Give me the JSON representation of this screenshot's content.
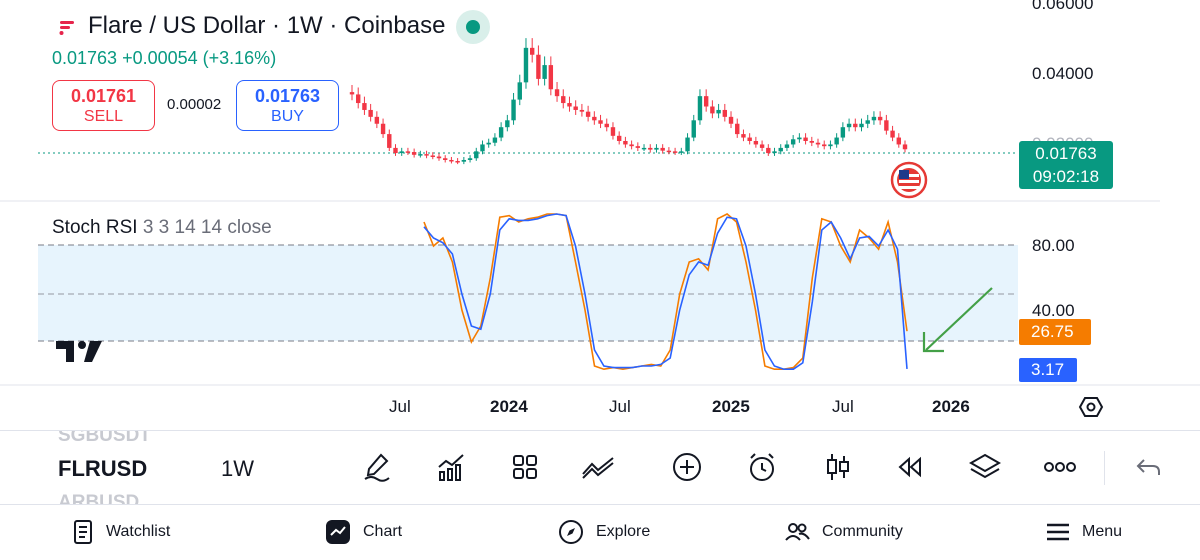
{
  "header": {
    "title": "Flare / US Dollar · 1W · Coinbase",
    "change": "0.01763  +0.00054 (+3.16%)",
    "sell": {
      "price": "0.01761",
      "label": "SELL"
    },
    "buy": {
      "price": "0.01763",
      "label": "BUY"
    },
    "spread": "0.00002",
    "status_icon": "market-open-dot"
  },
  "price_axis": {
    "top_label": "0.06000",
    "mid_label": "0.04000",
    "hidden_label": "0.02000"
  },
  "price_tag": {
    "price": "0.01763",
    "countdown": "09:02:18",
    "color": "#089981"
  },
  "indicator": {
    "name": "Stoch RSI",
    "params": "3 3 14 14 close",
    "level_80": "80.00",
    "level_40": "40.00",
    "k_value": "26.75",
    "d_value": "3.17",
    "k_color": "#f57c00",
    "d_color": "#2962ff"
  },
  "time_axis": [
    "Jul",
    "2024",
    "Jul",
    "2025",
    "Jul",
    "2026"
  ],
  "toolbar": {
    "ghost_above": "SGBUSDT",
    "symbol": "FLRUSD",
    "ghost_below": "ARBUSD",
    "interval": "1W",
    "icons": [
      "draw-icon",
      "indicators-icon",
      "layouts-icon",
      "compare-icon",
      "add-icon",
      "alert-icon",
      "candle-type-icon",
      "replay-icon",
      "layers-icon",
      "more-icon",
      "undo-icon"
    ]
  },
  "nav": {
    "watchlist": "Watchlist",
    "chart": "Chart",
    "explore": "Explore",
    "community": "Community",
    "menu": "Menu"
  },
  "chart_data": {
    "type": "candlestick",
    "series_note": "",
    "price_close_weekly": [
      0.0335,
      0.031,
      0.029,
      0.027,
      0.025,
      0.022,
      0.018,
      0.0165,
      0.017,
      0.0168,
      0.016,
      0.0162,
      0.0158,
      0.0155,
      0.015,
      0.0145,
      0.0142,
      0.014,
      0.0145,
      0.015,
      0.017,
      0.019,
      0.0195,
      0.021,
      0.024,
      0.026,
      0.032,
      0.037,
      0.047,
      0.045,
      0.038,
      0.042,
      0.035,
      0.033,
      0.031,
      0.03,
      0.029,
      0.0285,
      0.027,
      0.026,
      0.025,
      0.024,
      0.0215,
      0.02,
      0.019,
      0.0185,
      0.018,
      0.018,
      0.0175,
      0.018,
      0.0172,
      0.017,
      0.0168,
      0.017,
      0.021,
      0.026,
      0.033,
      0.03,
      0.028,
      0.029,
      0.027,
      0.025,
      0.022,
      0.021,
      0.02,
      0.019,
      0.018,
      0.0165,
      0.017,
      0.018,
      0.019,
      0.0205,
      0.021,
      0.02,
      0.0195,
      0.019,
      0.0185,
      0.019,
      0.021,
      0.024,
      0.025,
      0.024,
      0.025,
      0.026,
      0.027,
      0.026,
      0.023,
      0.021,
      0.019,
      0.0176
    ],
    "stoch_k": [
      95,
      80,
      85,
      70,
      40,
      20,
      30,
      60,
      98,
      99,
      95,
      97,
      98,
      100,
      100,
      99,
      70,
      40,
      5,
      3,
      4,
      3,
      4,
      5,
      6,
      5,
      15,
      50,
      70,
      72,
      65,
      97,
      100,
      95,
      70,
      40,
      5,
      3,
      3,
      4,
      10,
      60,
      97,
      95,
      80,
      70,
      90,
      85,
      78,
      95,
      70,
      26.75
    ],
    "stoch_d": [
      92,
      85,
      82,
      75,
      50,
      30,
      28,
      50,
      90,
      97,
      96,
      96,
      97,
      99,
      100,
      99,
      80,
      50,
      15,
      5,
      4,
      4,
      4,
      5,
      5,
      6,
      10,
      40,
      62,
      70,
      68,
      88,
      98,
      97,
      80,
      50,
      15,
      5,
      3,
      3,
      7,
      45,
      90,
      95,
      85,
      72,
      85,
      86,
      80,
      90,
      78,
      3.17
    ],
    "levels": [
      80,
      40
    ],
    "last_k": 26.75,
    "last_d": 3.17
  }
}
